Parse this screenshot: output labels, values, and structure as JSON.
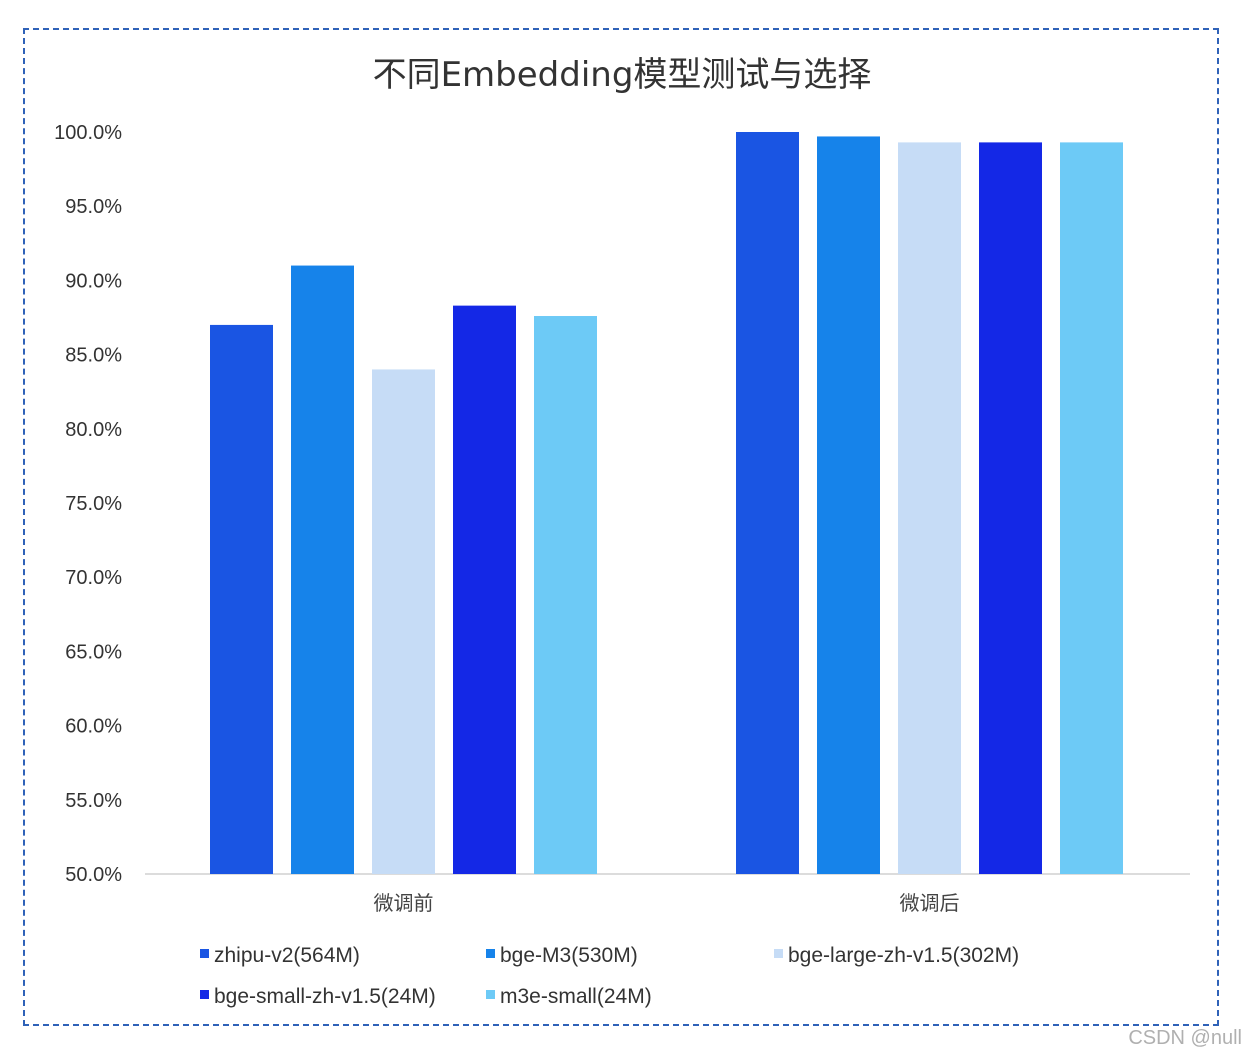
{
  "chart_data": {
    "type": "bar",
    "title": "不同Embedding模型测试与选择",
    "categories": [
      "微调前",
      "微调后"
    ],
    "ylim": [
      0.5,
      1.0
    ],
    "yticks": [
      "100.0%",
      "95.0%",
      "90.0%",
      "85.0%",
      "80.0%",
      "75.0%",
      "70.0%",
      "65.0%",
      "60.0%",
      "55.0%",
      "50.0%"
    ],
    "ytick_values": [
      1.0,
      0.95,
      0.9,
      0.85,
      0.8,
      0.75,
      0.7,
      0.65,
      0.6,
      0.55,
      0.5
    ],
    "grid": false,
    "legend_position": "bottom",
    "series": [
      {
        "name": "zhipu-v2(564M)",
        "color": "#1a55e3",
        "values": [
          0.87,
          1.0
        ]
      },
      {
        "name": "bge-M3(530M)",
        "color": "#1683ea",
        "values": [
          0.91,
          0.997
        ]
      },
      {
        "name": "bge-large-zh-v1.5(302M)",
        "color": "#c6dcf6",
        "values": [
          0.84,
          0.993
        ]
      },
      {
        "name": "bge-small-zh-v1.5(24M)",
        "color": "#1428e6",
        "values": [
          0.883,
          0.993
        ]
      },
      {
        "name": "m3e-small(24M)",
        "color": "#6dcaf6",
        "values": [
          0.876,
          0.993
        ]
      }
    ]
  },
  "watermark": "CSDN @null"
}
